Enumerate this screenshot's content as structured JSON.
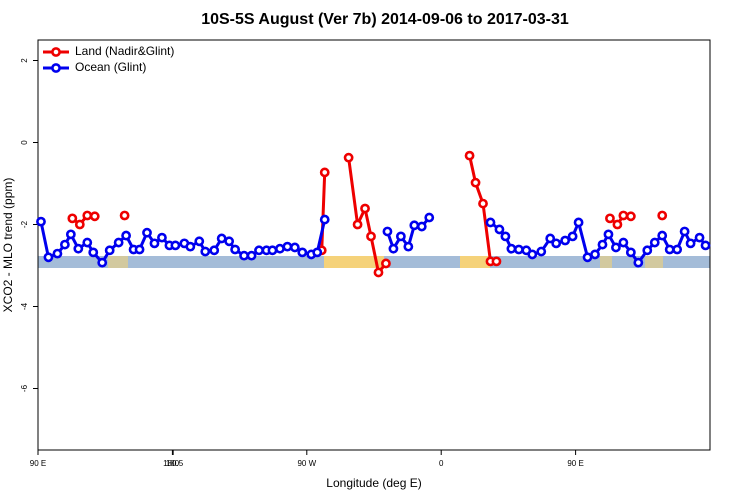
{
  "chart_data": {
    "type": "line",
    "title": "10S-5S August (Ver 7b)   2014-09-06 to 2017-03-31",
    "x_label": "Longitude (deg E)",
    "y_label": "XCO2 - MLO trend (ppm)",
    "xlim": [
      90,
      540
    ],
    "xticks": [
      {
        "value": 90,
        "label": "90 E"
      },
      180,
      {
        "value": 270,
        "label": "90 W"
      },
      {
        "value": 360,
        "label": "0"
      },
      {
        "value": 450,
        "label": "90 E"
      },
      180.5
    ],
    "ylim": [
      -7.5,
      2.5
    ],
    "yticks": [
      2,
      0,
      -2,
      -4,
      -6
    ],
    "legend": "top-left",
    "series": [
      {
        "name": "Land (Nadir&Glint)",
        "color": "#ee0000",
        "x": [
          113,
          118,
          123,
          128,
          null,
          148,
          null,
          280,
          282,
          null,
          298,
          304,
          309,
          313,
          318,
          323,
          null,
          379,
          383,
          388,
          393,
          397,
          null,
          473,
          478,
          482,
          487,
          null,
          508
        ],
        "values": [
          -1.85,
          -2.0,
          -1.78,
          -1.8,
          null,
          -1.78,
          null,
          -2.63,
          -0.73,
          null,
          -0.37,
          -2.0,
          -1.61,
          -2.29,
          -3.17,
          -2.95,
          null,
          -0.32,
          -0.98,
          -1.49,
          -2.9,
          -2.9,
          null,
          -1.85,
          -2.0,
          -1.78,
          -1.8,
          null,
          -1.78
        ]
      },
      {
        "name": "Ocean (Glint)",
        "color": "#0000ee",
        "x": [
          92,
          97,
          103,
          108,
          112,
          117,
          123,
          127,
          133,
          138,
          144,
          149,
          154,
          158,
          163,
          168,
          173,
          178,
          182,
          188,
          192,
          198,
          202,
          208,
          213,
          218,
          222,
          228,
          233,
          238,
          243,
          247,
          252,
          257,
          262,
          267,
          273,
          277,
          282,
          null,
          324,
          328,
          333,
          338,
          342,
          347,
          352,
          null,
          393,
          399,
          403,
          407,
          412,
          417,
          421,
          427,
          433,
          437,
          443,
          448,
          452,
          458,
          463,
          468,
          472,
          477,
          482,
          487,
          492,
          498,
          503,
          508,
          513,
          518,
          523,
          527,
          533,
          537
        ],
        "values": [
          -1.93,
          -2.8,
          -2.71,
          -2.49,
          -2.24,
          -2.59,
          -2.44,
          -2.68,
          -2.93,
          -2.63,
          -2.44,
          -2.27,
          -2.61,
          -2.61,
          -2.2,
          -2.46,
          -2.32,
          -2.51,
          -2.51,
          -2.46,
          -2.54,
          -2.41,
          -2.66,
          -2.63,
          -2.34,
          -2.41,
          -2.61,
          -2.76,
          -2.76,
          -2.63,
          -2.63,
          -2.63,
          -2.59,
          -2.54,
          -2.56,
          -2.68,
          -2.73,
          -2.68,
          -1.88,
          null,
          -2.17,
          -2.59,
          -2.29,
          -2.54,
          -2.02,
          -2.05,
          -1.83,
          null,
          -1.95,
          -2.12,
          -2.29,
          -2.59,
          -2.61,
          -2.63,
          -2.73,
          -2.66,
          -2.34,
          -2.46,
          -2.39,
          -2.29,
          -1.95,
          -2.8,
          -2.73,
          -2.49,
          -2.24,
          -2.56,
          -2.44,
          -2.68,
          -2.93,
          -2.63,
          -2.44,
          -2.27,
          -2.61,
          -2.61,
          -2.17,
          -2.46,
          -2.32,
          -2.51
        ]
      }
    ]
  }
}
